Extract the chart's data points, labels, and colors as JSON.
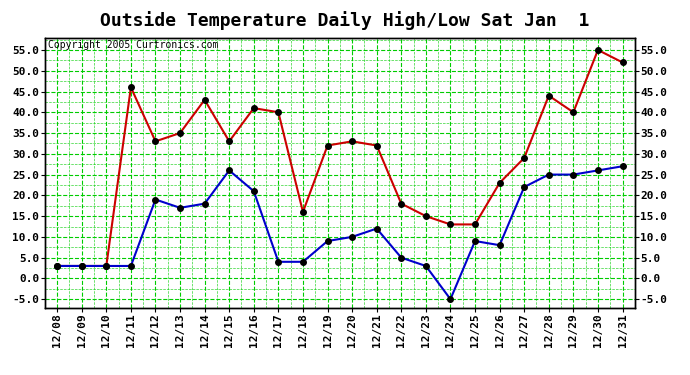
{
  "title": "Outside Temperature Daily High/Low Sat Jan  1",
  "copyright": "Copyright 2005 Curtronics.com",
  "dates": [
    "12/08",
    "12/09",
    "12/10",
    "12/11",
    "12/12",
    "12/13",
    "12/14",
    "12/15",
    "12/16",
    "12/17",
    "12/18",
    "12/19",
    "12/20",
    "12/21",
    "12/22",
    "12/23",
    "12/24",
    "12/25",
    "12/26",
    "12/27",
    "12/28",
    "12/29",
    "12/30",
    "12/31"
  ],
  "high": [
    3,
    3,
    3,
    46,
    33,
    35,
    43,
    33,
    41,
    40,
    16,
    32,
    33,
    32,
    18,
    15,
    13,
    13,
    23,
    29,
    44,
    40,
    55,
    52
  ],
  "low": [
    3,
    3,
    3,
    3,
    19,
    17,
    18,
    26,
    21,
    4,
    4,
    9,
    10,
    12,
    5,
    3,
    -5,
    9,
    8,
    22,
    25,
    25,
    26,
    27
  ],
  "high_color": "#cc0000",
  "low_color": "#0000cc",
  "ylim": [
    -7,
    58
  ],
  "yticks": [
    -5.0,
    0.0,
    5.0,
    10.0,
    15.0,
    20.0,
    25.0,
    30.0,
    35.0,
    40.0,
    45.0,
    50.0,
    55.0
  ],
  "bg_color": "#ffffff",
  "grid_color": "#00cc00",
  "title_fontsize": 13,
  "tick_fontsize": 8,
  "copyright_fontsize": 7,
  "linewidth": 1.5,
  "markersize": 4
}
